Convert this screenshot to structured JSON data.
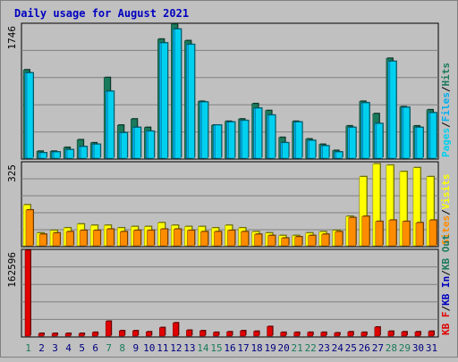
{
  "title": "Daily usage for August 2021",
  "colors": {
    "background": "#c0c0c0",
    "plot_bg": "#c0c0c0",
    "grid": "#808080",
    "title": "#0000c0",
    "hits": "#1a7a5c",
    "files": "#00b0f0",
    "pages": "#00d0f0",
    "visits": "#ffff00",
    "sites": "#ff8c00",
    "kbf": "#e00000",
    "kbin": "#0000c0",
    "kbout": "#1a7a5c",
    "weekend": "#1a7a5c",
    "weekday": "#000080"
  },
  "chart_data": [
    {
      "type": "bar",
      "name": "hits-files-pages",
      "ymax_label": "1746",
      "ymax": 1746,
      "legend": [
        "Pages",
        "Files",
        "Hits"
      ],
      "categories": [
        "1",
        "2",
        "3",
        "4",
        "5",
        "6",
        "7",
        "8",
        "9",
        "10",
        "11",
        "12",
        "13",
        "14",
        "15",
        "16",
        "17",
        "18",
        "19",
        "20",
        "21",
        "22",
        "23",
        "24",
        "25",
        "26",
        "27",
        "28",
        "29",
        "30",
        "31"
      ],
      "series": [
        {
          "name": "Hits",
          "values": [
            1150,
            90,
            90,
            140,
            240,
            200,
            1050,
            430,
            510,
            400,
            1550,
            1746,
            1530,
            740,
            430,
            480,
            510,
            710,
            620,
            270,
            480,
            250,
            180,
            100,
            420,
            740,
            580,
            1300,
            670,
            420,
            630
          ]
        },
        {
          "name": "Files",
          "values": [
            1110,
            70,
            80,
            110,
            150,
            180,
            870,
            330,
            400,
            350,
            1500,
            1680,
            1480,
            730,
            430,
            470,
            490,
            650,
            560,
            200,
            470,
            230,
            160,
            80,
            400,
            720,
            450,
            1260,
            660,
            400,
            590
          ]
        },
        {
          "name": "Pages",
          "values": [
            1110,
            70,
            80,
            110,
            150,
            180,
            870,
            330,
            400,
            350,
            1500,
            1680,
            1480,
            730,
            430,
            470,
            490,
            650,
            560,
            200,
            470,
            230,
            160,
            80,
            400,
            720,
            450,
            1260,
            660,
            400,
            590
          ]
        }
      ]
    },
    {
      "type": "bar",
      "name": "visits-sites",
      "ymax_label": "325",
      "ymax": 325,
      "legend": [
        "Sites",
        "Visits"
      ],
      "categories": [
        "1",
        "2",
        "3",
        "4",
        "5",
        "6",
        "7",
        "8",
        "9",
        "10",
        "11",
        "12",
        "13",
        "14",
        "15",
        "16",
        "17",
        "18",
        "19",
        "20",
        "21",
        "22",
        "23",
        "24",
        "25",
        "26",
        "27",
        "28",
        "29",
        "30",
        "31"
      ],
      "series": [
        {
          "name": "Visits",
          "values": [
            160,
            50,
            60,
            70,
            85,
            80,
            80,
            70,
            75,
            75,
            90,
            80,
            75,
            75,
            70,
            80,
            70,
            55,
            50,
            40,
            40,
            50,
            55,
            60,
            115,
            270,
            320,
            315,
            290,
            305,
            270
          ]
        },
        {
          "name": "Sites",
          "values": [
            140,
            45,
            50,
            55,
            60,
            60,
            65,
            55,
            60,
            60,
            65,
            65,
            60,
            55,
            55,
            60,
            55,
            45,
            40,
            30,
            35,
            40,
            45,
            55,
            110,
            115,
            95,
            100,
            95,
            90,
            100
          ]
        }
      ]
    },
    {
      "type": "bar",
      "name": "kbytes",
      "ymax_label": "162596",
      "ymax": 162596,
      "legend": [
        "KB F",
        "KB In",
        "KB Out"
      ],
      "categories": [
        "1",
        "2",
        "3",
        "4",
        "5",
        "6",
        "7",
        "8",
        "9",
        "10",
        "11",
        "12",
        "13",
        "14",
        "15",
        "16",
        "17",
        "18",
        "19",
        "20",
        "21",
        "22",
        "23",
        "24",
        "25",
        "26",
        "27",
        "28",
        "29",
        "30",
        "31"
      ],
      "series": [
        {
          "name": "KB F",
          "values": [
            162596,
            5000,
            5000,
            5000,
            5000,
            7000,
            28000,
            10000,
            10000,
            8000,
            16000,
            25000,
            11000,
            10000,
            7000,
            8000,
            10000,
            9000,
            18000,
            7000,
            7000,
            7000,
            7000,
            6000,
            8000,
            7000,
            17000,
            9000,
            8000,
            8000,
            9000
          ]
        }
      ]
    }
  ],
  "x_labels": {
    "days": [
      "1",
      "2",
      "3",
      "4",
      "5",
      "6",
      "7",
      "8",
      "9",
      "10",
      "11",
      "12",
      "13",
      "14",
      "15",
      "16",
      "17",
      "18",
      "19",
      "20",
      "21",
      "22",
      "23",
      "24",
      "25",
      "26",
      "27",
      "28",
      "29",
      "30",
      "31"
    ],
    "weekend": [
      1,
      7,
      8,
      14,
      15,
      21,
      22,
      28,
      29
    ]
  }
}
